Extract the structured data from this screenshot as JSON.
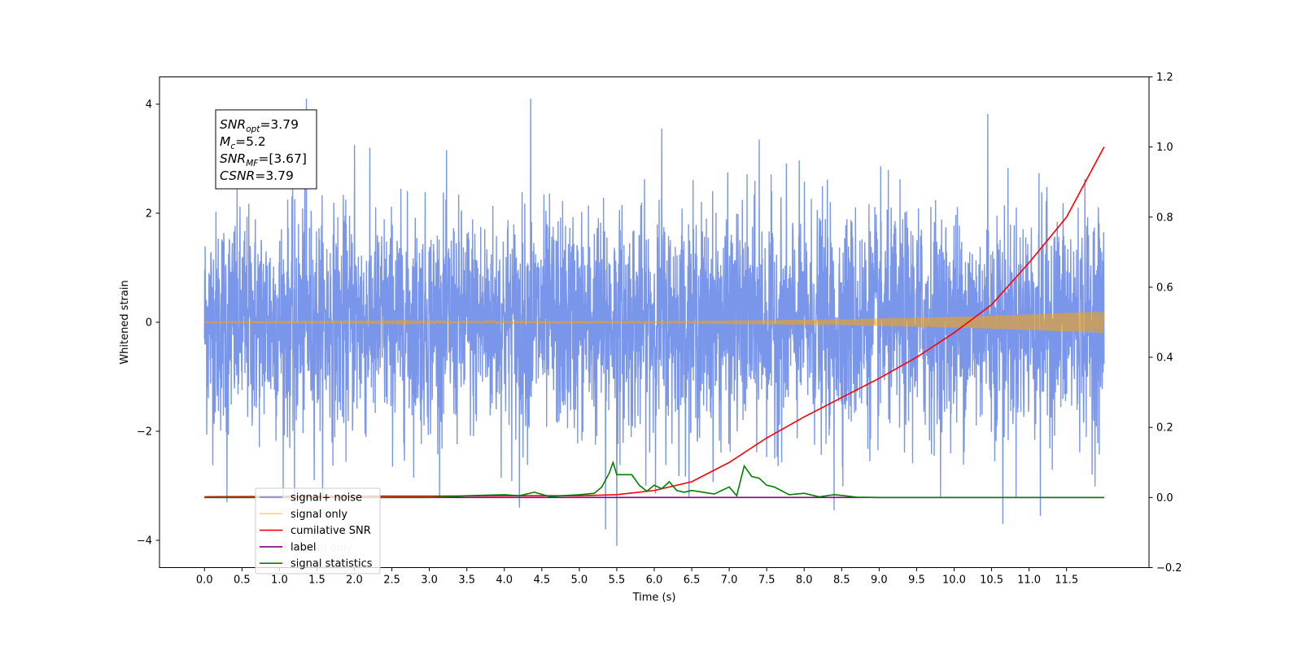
{
  "chart_data": {
    "type": "line",
    "title": "",
    "xlabel": "Time (s)",
    "ylabel": "Whitened strain",
    "y2label": "",
    "xlim": [
      -0.6,
      12.6
    ],
    "ylim": [
      -4.5,
      4.5
    ],
    "y2lim": [
      -0.2,
      1.2
    ],
    "x_ticks": [
      0.0,
      0.5,
      1.0,
      1.5,
      2.0,
      2.5,
      3.0,
      3.5,
      4.0,
      4.5,
      5.0,
      5.5,
      6.0,
      6.5,
      7.0,
      7.5,
      8.0,
      8.5,
      9.0,
      9.5,
      10.0,
      10.5,
      11.0,
      11.5
    ],
    "x_tick_labels": [
      "0.0",
      "0.5",
      "1.0",
      "1.5",
      "2.0",
      "2.5",
      "3.0",
      "3.5",
      "4.0",
      "4.5",
      "5.0",
      "5.5",
      "6.0",
      "6.5",
      "7.0",
      "7.5",
      "8.0",
      "8.5",
      "9.0",
      "9.5",
      "10.0",
      "10.5",
      "11.0",
      "11.5"
    ],
    "y_ticks": [
      -4,
      -2,
      0,
      2,
      4
    ],
    "y_tick_labels": [
      "−4",
      "−2",
      "0",
      "2",
      "4"
    ],
    "y2_ticks": [
      -0.2,
      0.0,
      0.2,
      0.4,
      0.6,
      0.8,
      1.0,
      1.2
    ],
    "y2_tick_labels": [
      "−0.2",
      "0.0",
      "0.2",
      "0.4",
      "0.6",
      "0.8",
      "1.0",
      "1.2"
    ],
    "grid": false,
    "legend_position": "lower-left",
    "series": [
      {
        "name": "signal+ noise",
        "axis": "left",
        "color": "#4169e1",
        "style": "noise",
        "x_range": [
          0.0,
          12.0
        ],
        "envelope": 1.0,
        "peaks": [
          {
            "x": 1.36,
            "y": 4.1
          },
          {
            "x": 4.35,
            "y": 4.1
          },
          {
            "x": 10.45,
            "y": 3.82
          },
          {
            "x": 2.0,
            "y": 3.25
          },
          {
            "x": 6.1,
            "y": 3.55
          },
          {
            "x": 7.4,
            "y": 3.35
          },
          {
            "x": 5.5,
            "y": -4.1
          },
          {
            "x": 5.35,
            "y": -3.8
          },
          {
            "x": 10.65,
            "y": -3.7
          },
          {
            "x": 11.15,
            "y": -3.55
          },
          {
            "x": 4.2,
            "y": -3.4
          },
          {
            "x": 8.4,
            "y": -3.45
          },
          {
            "x": 0.3,
            "y": -3.3
          },
          {
            "x": 1.2,
            "y": -3.35
          }
        ]
      },
      {
        "name": "signal only",
        "axis": "left",
        "color": "#ffa500",
        "style": "chirp",
        "x_range": [
          0.0,
          12.0
        ],
        "amplitude_start": 0.01,
        "amplitude_end": 0.2
      },
      {
        "name": "cumilative SNR",
        "axis": "right",
        "color": "#ff0000",
        "x": [
          0.0,
          1.0,
          2.0,
          3.0,
          4.0,
          5.0,
          5.5,
          6.0,
          6.5,
          7.0,
          7.5,
          8.0,
          8.5,
          9.0,
          9.5,
          10.0,
          10.5,
          11.0,
          11.5,
          12.0
        ],
        "values": [
          0.002,
          0.003,
          0.004,
          0.004,
          0.005,
          0.005,
          0.008,
          0.02,
          0.045,
          0.1,
          0.17,
          0.23,
          0.285,
          0.34,
          0.4,
          0.47,
          0.55,
          0.67,
          0.8,
          1.0
        ]
      },
      {
        "name": "label",
        "axis": "right",
        "color": "#800080",
        "x": [
          0.0,
          12.0
        ],
        "values": [
          0.0,
          0.0
        ]
      },
      {
        "name": "signal statistics",
        "axis": "right",
        "color": "#008000",
        "x": [
          0.0,
          3.0,
          3.5,
          4.0,
          4.2,
          4.4,
          4.6,
          5.0,
          5.2,
          5.3,
          5.4,
          5.45,
          5.5,
          5.7,
          5.8,
          5.9,
          6.0,
          6.1,
          6.2,
          6.3,
          6.4,
          6.5,
          6.8,
          7.0,
          7.1,
          7.2,
          7.3,
          7.4,
          7.5,
          7.6,
          7.8,
          8.0,
          8.2,
          8.4,
          8.5,
          8.7,
          9.0,
          12.0
        ],
        "values": [
          0.0,
          0.0,
          0.005,
          0.008,
          0.005,
          0.015,
          0.003,
          0.008,
          0.012,
          0.03,
          0.07,
          0.1,
          0.065,
          0.065,
          0.035,
          0.018,
          0.035,
          0.025,
          0.045,
          0.02,
          0.015,
          0.02,
          0.01,
          0.03,
          0.005,
          0.09,
          0.06,
          0.055,
          0.035,
          0.03,
          0.008,
          0.012,
          0.002,
          0.008,
          0.006,
          0.001,
          0.0,
          0.0
        ]
      }
    ],
    "legend": [
      {
        "name": "signal+ noise",
        "color": "#4169e1"
      },
      {
        "name": "signal only",
        "color": "#ffa500"
      },
      {
        "name": "cumilative SNR",
        "color": "#ff0000"
      },
      {
        "name": "label",
        "color": "#800080"
      },
      {
        "name": "signal statistics",
        "color": "#008000"
      }
    ],
    "annotation_box": [
      {
        "base": "SNR",
        "sub": "opt",
        "value": "=3.79"
      },
      {
        "base": "M",
        "sub": "c",
        "value": "=5.2"
      },
      {
        "base": "SNR",
        "sub": "MF",
        "value": "=[3.67]"
      },
      {
        "base": "CSNR",
        "sub": "",
        "value": "=3.79"
      }
    ],
    "legend_ghost_text": [
      "signal only",
      "label only"
    ]
  }
}
